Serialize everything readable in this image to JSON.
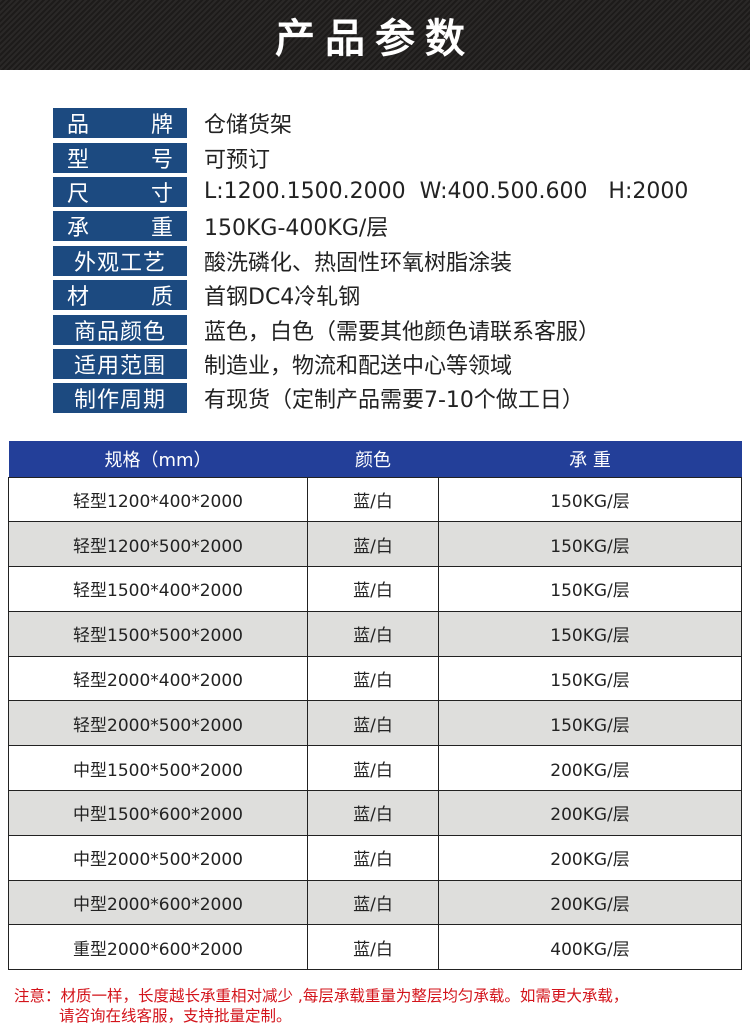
{
  "title": "产品参数",
  "specs": [
    {
      "label_chars": [
        "品",
        "牌"
      ],
      "value": "仓储货架"
    },
    {
      "label_chars": [
        "型",
        "号"
      ],
      "value": "可预订"
    },
    {
      "label_chars": [
        "尺",
        "寸"
      ],
      "value": "L:1200.1500.2000  W:400.500.600   H:2000"
    },
    {
      "label_chars": [
        "承",
        "重"
      ],
      "value": "150KG-400KG/层"
    },
    {
      "label": "外观工艺",
      "value": "酸洗磷化、热固性环氧树脂涂装"
    },
    {
      "label_chars": [
        "材",
        "质"
      ],
      "value": "首钢DC4冷轧钢"
    },
    {
      "label": "商品颜色",
      "value": "蓝色，白色（需要其他颜色请联系客服）"
    },
    {
      "label": "适用范围",
      "value": "制造业，物流和配送中心等领域"
    },
    {
      "label": "制作周期",
      "value": "有现货（定制产品需要7-10个做工日）"
    }
  ],
  "table": {
    "headers": [
      "规格（mm）",
      "颜色",
      "承 重"
    ],
    "rows": [
      [
        "轻型1200*400*2000",
        "蓝/白",
        "150KG/层"
      ],
      [
        "轻型1200*500*2000",
        "蓝/白",
        "150KG/层"
      ],
      [
        "轻型1500*400*2000",
        "蓝/白",
        "150KG/层"
      ],
      [
        "轻型1500*500*2000",
        "蓝/白",
        "150KG/层"
      ],
      [
        "轻型2000*400*2000",
        "蓝/白",
        "150KG/层"
      ],
      [
        "轻型2000*500*2000",
        "蓝/白",
        "150KG/层"
      ],
      [
        "中型1500*500*2000",
        "蓝/白",
        "200KG/层"
      ],
      [
        "中型1500*600*2000",
        "蓝/白",
        "200KG/层"
      ],
      [
        "中型2000*500*2000",
        "蓝/白",
        "200KG/层"
      ],
      [
        "中型2000*600*2000",
        "蓝/白",
        "200KG/层"
      ],
      [
        "重型2000*600*2000",
        "蓝/白",
        "400KG/层"
      ]
    ]
  },
  "note": {
    "line1": "注意：材质一样，长度越长承重相对减少 ,每层承载重量为整层均匀承载。如需更大承载，",
    "line2": "请咨询在线客服，支持批量定制。"
  },
  "colors": {
    "label_bg": "#1c4a80",
    "header_bg": "#233f99",
    "note": "#d3141b"
  }
}
